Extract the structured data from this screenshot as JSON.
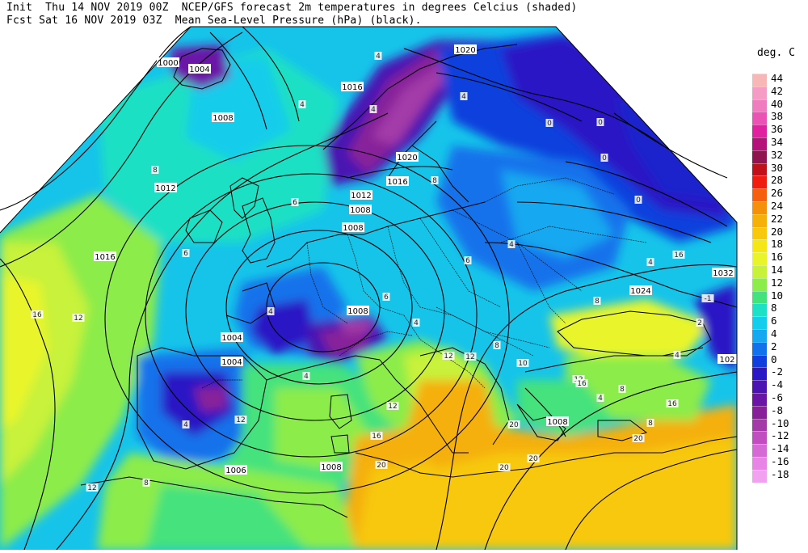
{
  "header": {
    "line1": "Init  Thu 14 NOV 2019 00Z  NCEP/GFS forecast 2m temperatures in degrees Celcius (shaded)",
    "line2": "Fcst Sat 16 NOV 2019 03Z  Mean Sea-Level Pressure (hPa) (black)."
  },
  "legend": {
    "title": "deg. C",
    "entries": [
      {
        "label": "44",
        "color": "#f7b7b7"
      },
      {
        "label": "42",
        "color": "#f59cc4"
      },
      {
        "label": "40",
        "color": "#f07cc0"
      },
      {
        "label": "38",
        "color": "#ea52b4"
      },
      {
        "label": "36",
        "color": "#e0219f"
      },
      {
        "label": "34",
        "color": "#b4127a"
      },
      {
        "label": "32",
        "color": "#8f1450"
      },
      {
        "label": "30",
        "color": "#c0101a"
      },
      {
        "label": "28",
        "color": "#ef1c10"
      },
      {
        "label": "26",
        "color": "#f5600e"
      },
      {
        "label": "24",
        "color": "#f5900a"
      },
      {
        "label": "22",
        "color": "#f5b00a"
      },
      {
        "label": "20",
        "color": "#f7c80b"
      },
      {
        "label": "18",
        "color": "#f5e617"
      },
      {
        "label": "16",
        "color": "#e9f52a"
      },
      {
        "label": "14",
        "color": "#c8f23a"
      },
      {
        "label": "12",
        "color": "#8cec4a"
      },
      {
        "label": "10",
        "color": "#44e27d"
      },
      {
        "label": "8",
        "color": "#1ee0c4"
      },
      {
        "label": "6",
        "color": "#14cceb"
      },
      {
        "label": "4",
        "color": "#16a8f0"
      },
      {
        "label": "2",
        "color": "#1272eb"
      },
      {
        "label": "0",
        "color": "#0f40dd"
      },
      {
        "label": "-2",
        "color": "#2a18c4"
      },
      {
        "label": "-4",
        "color": "#4a13b2"
      },
      {
        "label": "-6",
        "color": "#6a15a6"
      },
      {
        "label": "-8",
        "color": "#88209a"
      },
      {
        "label": "-10",
        "color": "#a33aa8"
      },
      {
        "label": "-12",
        "color": "#c04ec0"
      },
      {
        "label": "-14",
        "color": "#d66ad4"
      },
      {
        "label": "-16",
        "color": "#e884e6"
      },
      {
        "label": "-18",
        "color": "#f2a0f0"
      }
    ]
  },
  "isobar_labels": [
    "1000",
    "1004",
    "1008",
    "1012",
    "1016",
    "1016",
    "1016",
    "1020",
    "1020",
    "1012",
    "1008",
    "1008",
    "1004",
    "1008",
    "1004",
    "1006",
    "1008",
    "1008",
    "1024",
    "1032",
    "1020",
    "102"
  ],
  "temp_labels": [
    "4",
    "4",
    "4",
    "4",
    "8",
    "6",
    "8",
    "6",
    "4",
    "0",
    "0",
    "0",
    "4",
    "4",
    "6",
    "4",
    "6",
    "8",
    "12",
    "12",
    "8",
    "4",
    "4",
    "12",
    "12",
    "12",
    "16",
    "16",
    "20",
    "20",
    "8",
    "8",
    "12",
    "16",
    "16",
    "20",
    "20",
    "4",
    "8",
    "10",
    "2",
    "0",
    "-1",
    "4",
    "16",
    "20",
    "12"
  ]
}
